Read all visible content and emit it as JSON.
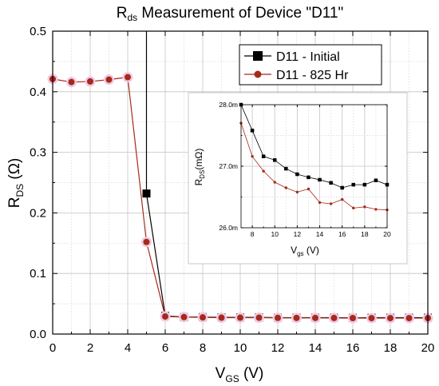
{
  "chart_data": [
    {
      "id": "main",
      "type": "line",
      "title": {
        "main": "R",
        "sub": "ds",
        "rest": " Measurement of Device \"D11\""
      },
      "xlabel": {
        "main": "V",
        "sub": "GS",
        "rest": " (V)"
      },
      "ylabel": {
        "main": "R",
        "sub": "DS",
        "rest": " (Ω)"
      },
      "xlim": [
        0,
        20
      ],
      "ylim": [
        0,
        0.5
      ],
      "xticks": [
        0,
        2,
        4,
        6,
        8,
        10,
        12,
        14,
        16,
        18,
        20
      ],
      "yticks": [
        0.0,
        0.1,
        0.2,
        0.3,
        0.4,
        0.5
      ],
      "ytick_labels": [
        "0.0",
        "0.1",
        "0.2",
        "0.3",
        "0.4",
        "0.5"
      ],
      "grid": true,
      "legend_position": "top-right",
      "series": [
        {
          "name": "D11 - Initial",
          "color": "#000000",
          "marker": "square",
          "x": [
            5,
            5,
            6,
            7,
            8,
            9,
            10,
            11,
            12,
            13,
            14,
            15,
            16,
            17,
            18,
            19,
            20
          ],
          "y": [
            0.5,
            0.232,
            0.03,
            0.028,
            0.028,
            0.0275,
            0.0275,
            0.0275,
            0.027,
            0.027,
            0.027,
            0.027,
            0.0268,
            0.027,
            0.027,
            0.027,
            0.027
          ],
          "marker_indices": [
            1,
            2,
            3,
            4,
            5,
            6,
            7,
            8,
            9,
            10,
            11,
            12,
            13,
            14,
            15,
            16
          ]
        },
        {
          "name": "D11 - 825 Hr",
          "color": "#a52a1a",
          "marker": "circle",
          "x": [
            0,
            1,
            2,
            3,
            4,
            5,
            6,
            7,
            8,
            9,
            10,
            11,
            12,
            13,
            14,
            15,
            16,
            17,
            18,
            19,
            20
          ],
          "y": [
            0.421,
            0.416,
            0.417,
            0.42,
            0.424,
            0.152,
            0.029,
            0.028,
            0.0275,
            0.027,
            0.027,
            0.027,
            0.0267,
            0.0266,
            0.0266,
            0.0265,
            0.0264,
            0.0263,
            0.0263,
            0.0263,
            0.0263
          ]
        }
      ]
    },
    {
      "id": "inset",
      "type": "line",
      "xlabel": {
        "main": "V",
        "sub": "gs",
        "rest": " (V)"
      },
      "ylabel": {
        "main": "R",
        "sub": "DS",
        "rest": "(mΩ)"
      },
      "xlim": [
        7,
        20
      ],
      "ylim": [
        26.0,
        28.0
      ],
      "xticks": [
        8,
        10,
        12,
        14,
        16,
        18,
        20
      ],
      "yticks": [
        26.0,
        27.0,
        28.0
      ],
      "ytick_labels": [
        "26.0m",
        "27.0m",
        "28.0m"
      ],
      "grid": true,
      "series": [
        {
          "name": "D11 - Initial",
          "color": "#000000",
          "marker": "square",
          "x": [
            7,
            8,
            9,
            10,
            11,
            12,
            13,
            14,
            15,
            16,
            17,
            18,
            19,
            20
          ],
          "y": [
            28.0,
            27.58,
            27.16,
            27.1,
            26.96,
            26.87,
            26.82,
            26.78,
            26.73,
            26.65,
            26.7,
            26.7,
            26.77,
            26.7
          ]
        },
        {
          "name": "D11 - 825 Hr",
          "color": "#a52a1a",
          "marker": "circle",
          "x": [
            7,
            8,
            9,
            10,
            11,
            12,
            13,
            14,
            15,
            16,
            17,
            18,
            19,
            20
          ],
          "y": [
            27.7,
            27.16,
            26.92,
            26.74,
            26.65,
            26.58,
            26.63,
            26.41,
            26.39,
            26.46,
            26.32,
            26.34,
            26.3,
            26.29
          ]
        }
      ]
    }
  ]
}
